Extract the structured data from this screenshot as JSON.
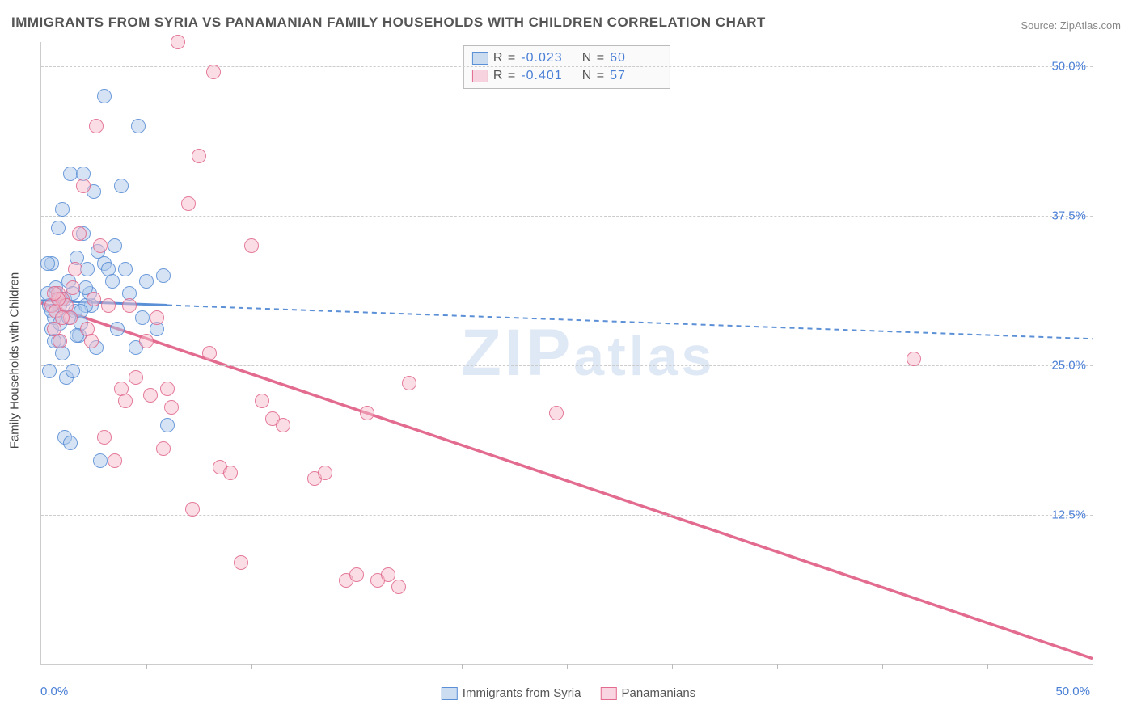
{
  "title": "IMMIGRANTS FROM SYRIA VS PANAMANIAN FAMILY HOUSEHOLDS WITH CHILDREN CORRELATION CHART",
  "source": "Source: ZipAtlas.com",
  "y_axis_title": "Family Households with Children",
  "watermark": "ZIPatlas",
  "chart": {
    "type": "scatter",
    "xlim": [
      0,
      50
    ],
    "ylim": [
      0,
      52
    ],
    "x_ticks": [
      0,
      5,
      10,
      15,
      20,
      25,
      30,
      35,
      40,
      45,
      50
    ],
    "y_ticks": [
      12.5,
      25.0,
      37.5,
      50.0
    ],
    "x_origin_label": "0.0%",
    "x_max_label": "50.0%",
    "y_tick_labels": [
      "12.5%",
      "25.0%",
      "37.5%",
      "50.0%"
    ],
    "grid_color": "#cccccc",
    "background_color": "#ffffff",
    "axis_label_color": "#4a7fd6",
    "marker_radius": 9,
    "marker_border_width": 1.5,
    "marker_fill_opacity": 0.25
  },
  "series": [
    {
      "name": "Immigrants from Syria",
      "color": "#5b8fd6",
      "fill": "#aac6ea",
      "R": "-0.023",
      "N": "60",
      "trend": {
        "x1": 0,
        "y1": 30.4,
        "x2": 50,
        "y2": 27.2,
        "solid_until_x": 6,
        "dash": "6,5",
        "width": 2
      },
      "points": [
        [
          0.4,
          30.0
        ],
        [
          0.5,
          28.0
        ],
        [
          0.6,
          29.0
        ],
        [
          0.7,
          31.0
        ],
        [
          0.8,
          27.0
        ],
        [
          0.9,
          30.5
        ],
        [
          1.0,
          38.0
        ],
        [
          1.0,
          26.0
        ],
        [
          1.2,
          24.0
        ],
        [
          1.3,
          32.0
        ],
        [
          1.4,
          41.0
        ],
        [
          1.5,
          24.5
        ],
        [
          1.6,
          29.5
        ],
        [
          1.8,
          27.5
        ],
        [
          2.0,
          36.0
        ],
        [
          2.0,
          41.0
        ],
        [
          2.2,
          33.0
        ],
        [
          2.4,
          30.0
        ],
        [
          2.5,
          39.5
        ],
        [
          2.6,
          26.5
        ],
        [
          2.8,
          17.0
        ],
        [
          3.0,
          33.5
        ],
        [
          3.0,
          47.5
        ],
        [
          3.2,
          33.0
        ],
        [
          3.4,
          32.0
        ],
        [
          3.5,
          35.0
        ],
        [
          3.6,
          28.0
        ],
        [
          3.8,
          40.0
        ],
        [
          4.0,
          33.0
        ],
        [
          4.2,
          31.0
        ],
        [
          4.5,
          26.5
        ],
        [
          4.6,
          45.0
        ],
        [
          4.8,
          29.0
        ],
        [
          5.0,
          32.0
        ],
        [
          5.5,
          28.0
        ],
        [
          5.8,
          32.5
        ],
        [
          6.0,
          20.0
        ],
        [
          0.3,
          31.0
        ],
        [
          0.4,
          24.5
        ],
        [
          0.5,
          33.5
        ],
        [
          0.6,
          27.0
        ],
        [
          0.8,
          36.5
        ],
        [
          0.9,
          30.0
        ],
        [
          1.1,
          19.0
        ],
        [
          1.4,
          18.5
        ],
        [
          1.7,
          34.0
        ],
        [
          1.9,
          28.5
        ],
        [
          2.1,
          30.0
        ],
        [
          2.3,
          31.0
        ],
        [
          2.7,
          34.5
        ],
        [
          0.3,
          33.5
        ],
        [
          0.5,
          29.5
        ],
        [
          0.7,
          31.5
        ],
        [
          0.9,
          28.5
        ],
        [
          1.1,
          30.5
        ],
        [
          1.3,
          29.0
        ],
        [
          1.5,
          31.0
        ],
        [
          1.7,
          27.5
        ],
        [
          1.9,
          29.5
        ],
        [
          2.1,
          31.5
        ]
      ]
    },
    {
      "name": "Panamanians",
      "color": "#e26b8f",
      "fill": "#f4b9cb",
      "R": "-0.401",
      "N": "57",
      "trend": {
        "x1": 0,
        "y1": 30.2,
        "x2": 50,
        "y2": 0.5,
        "solid_until_x": 50,
        "dash": "",
        "width": 2.5
      },
      "points": [
        [
          0.5,
          30.0
        ],
        [
          0.6,
          28.0
        ],
        [
          0.7,
          29.5
        ],
        [
          0.8,
          31.0
        ],
        [
          0.9,
          27.0
        ],
        [
          1.0,
          30.5
        ],
        [
          1.2,
          30.0
        ],
        [
          1.4,
          29.0
        ],
        [
          1.6,
          33.0
        ],
        [
          1.8,
          36.0
        ],
        [
          2.0,
          40.0
        ],
        [
          2.2,
          28.0
        ],
        [
          2.4,
          27.0
        ],
        [
          2.6,
          45.0
        ],
        [
          2.8,
          35.0
        ],
        [
          3.0,
          19.0
        ],
        [
          3.2,
          30.0
        ],
        [
          3.5,
          17.0
        ],
        [
          3.8,
          23.0
        ],
        [
          4.0,
          22.0
        ],
        [
          4.2,
          30.0
        ],
        [
          4.5,
          24.0
        ],
        [
          5.0,
          27.0
        ],
        [
          5.2,
          22.5
        ],
        [
          5.5,
          29.0
        ],
        [
          5.8,
          18.0
        ],
        [
          6.0,
          23.0
        ],
        [
          6.2,
          21.5
        ],
        [
          6.5,
          52.0
        ],
        [
          7.0,
          38.5
        ],
        [
          7.2,
          13.0
        ],
        [
          7.5,
          42.5
        ],
        [
          8.0,
          26.0
        ],
        [
          8.2,
          49.5
        ],
        [
          8.5,
          16.5
        ],
        [
          9.0,
          16.0
        ],
        [
          9.5,
          8.5
        ],
        [
          10.0,
          35.0
        ],
        [
          10.5,
          22.0
        ],
        [
          11.0,
          20.5
        ],
        [
          11.5,
          20.0
        ],
        [
          13.0,
          15.5
        ],
        [
          13.5,
          16.0
        ],
        [
          14.5,
          7.0
        ],
        [
          15.0,
          7.5
        ],
        [
          15.5,
          21.0
        ],
        [
          16.0,
          7.0
        ],
        [
          16.5,
          7.5
        ],
        [
          17.0,
          6.5
        ],
        [
          17.5,
          23.5
        ],
        [
          24.5,
          21.0
        ],
        [
          41.5,
          25.5
        ],
        [
          2.5,
          30.5
        ],
        [
          1.5,
          31.5
        ],
        [
          1.0,
          29.0
        ],
        [
          0.8,
          30.5
        ],
        [
          0.6,
          31.0
        ]
      ]
    }
  ],
  "legend": {
    "items": [
      {
        "label": "Immigrants from Syria",
        "color": "#5b8fd6",
        "fill": "#aac6ea"
      },
      {
        "label": "Panamanians",
        "color": "#e26b8f",
        "fill": "#f4b9cb"
      }
    ]
  }
}
